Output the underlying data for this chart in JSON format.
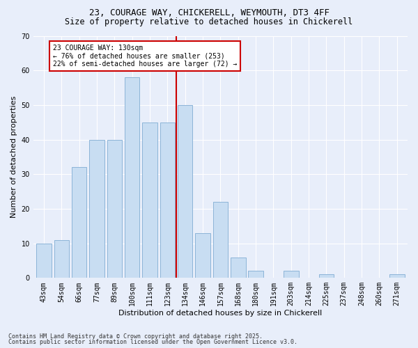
{
  "title_line1": "23, COURAGE WAY, CHICKERELL, WEYMOUTH, DT3 4FF",
  "title_line2": "Size of property relative to detached houses in Chickerell",
  "xlabel": "Distribution of detached houses by size in Chickerell",
  "ylabel": "Number of detached properties",
  "bin_labels": [
    "43sqm",
    "54sqm",
    "66sqm",
    "77sqm",
    "89sqm",
    "100sqm",
    "111sqm",
    "123sqm",
    "134sqm",
    "146sqm",
    "157sqm",
    "168sqm",
    "180sqm",
    "191sqm",
    "203sqm",
    "214sqm",
    "225sqm",
    "237sqm",
    "248sqm",
    "260sqm",
    "271sqm"
  ],
  "values": [
    10,
    11,
    32,
    40,
    40,
    58,
    45,
    45,
    50,
    13,
    22,
    6,
    2,
    0,
    2,
    0,
    1,
    0,
    0,
    0,
    1
  ],
  "bar_color": "#c8ddf2",
  "bar_edge_color": "#8cb4d8",
  "vline_index": 8,
  "vline_color": "#cc0000",
  "annotation_text": "23 COURAGE WAY: 130sqm\n← 76% of detached houses are smaller (253)\n22% of semi-detached houses are larger (72) →",
  "annotation_box_color": "#ffffff",
  "annotation_box_edge": "#cc0000",
  "ylim": [
    0,
    70
  ],
  "yticks": [
    0,
    10,
    20,
    30,
    40,
    50,
    60,
    70
  ],
  "background_color": "#e8eefa",
  "grid_color": "#ffffff",
  "footer_line1": "Contains HM Land Registry data © Crown copyright and database right 2025.",
  "footer_line2": "Contains public sector information licensed under the Open Government Licence v3.0.",
  "title_fontsize": 9,
  "subtitle_fontsize": 8.5,
  "ylabel_fontsize": 8,
  "xlabel_fontsize": 8,
  "tick_fontsize": 7,
  "annotation_fontsize": 7
}
